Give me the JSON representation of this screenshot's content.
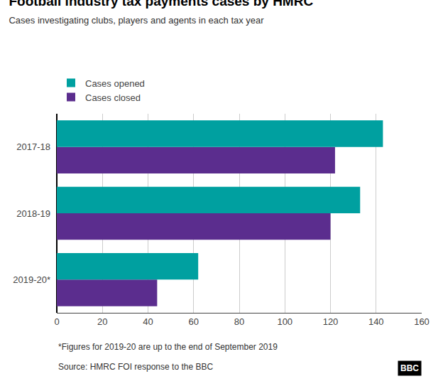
{
  "chart_data": {
    "type": "bar",
    "orientation": "horizontal",
    "title": "Football industry tax payments cases by HMRC",
    "subtitle": "Cases investigating clubs, players and agents in each tax year",
    "categories": [
      "2019-20*",
      "2018-19",
      "2017-18"
    ],
    "series": [
      {
        "name": "Cases opened",
        "color": "#00A0A0",
        "values": [
          62,
          133,
          143
        ]
      },
      {
        "name": "Cases closed",
        "color": "#5B2D8E",
        "values": [
          44,
          120,
          122
        ]
      }
    ],
    "xlim": [
      0,
      160
    ],
    "xticks": [
      0,
      20,
      40,
      60,
      80,
      100,
      120,
      140,
      160
    ],
    "grid": true,
    "legend": "top left",
    "annotations": [
      "*Figures for 2019-20 are up to the end of September 2019",
      "Source: HMRC FOI response to the BBC",
      "BBC"
    ]
  }
}
